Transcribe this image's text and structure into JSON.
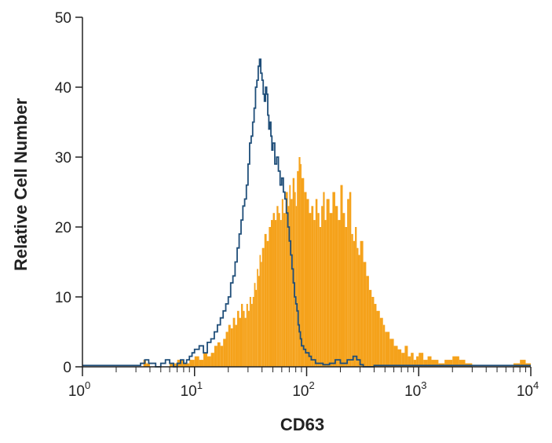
{
  "chart_data": {
    "type": "histogram-overlay",
    "title": "",
    "xlabel": "CD63",
    "ylabel": "Relative Cell Number",
    "xscale": "log",
    "xlim": [
      1,
      10000
    ],
    "ylim": [
      0,
      50
    ],
    "y_ticks": [
      "0",
      "10",
      "20",
      "30",
      "40",
      "50"
    ],
    "x_ticks": [
      {
        "base": "10",
        "exp": "0",
        "value": 1
      },
      {
        "base": "10",
        "exp": "1",
        "value": 10
      },
      {
        "base": "10",
        "exp": "2",
        "value": 100
      },
      {
        "base": "10",
        "exp": "3",
        "value": 1000
      },
      {
        "base": "10",
        "exp": "4",
        "value": 10000
      }
    ],
    "grid": false,
    "series": [
      {
        "style": "filled",
        "color": "#f5a21b",
        "points": [
          [
            3.3,
            0
          ],
          [
            3.5,
            1
          ],
          [
            3.7,
            0.5
          ],
          [
            4,
            0
          ],
          [
            5,
            0
          ],
          [
            6,
            0.5
          ],
          [
            7,
            1
          ],
          [
            8,
            0.5
          ],
          [
            9,
            1
          ],
          [
            10,
            1.5
          ],
          [
            11,
            1
          ],
          [
            12,
            2
          ],
          [
            13,
            1.5
          ],
          [
            14,
            2
          ],
          [
            15,
            3
          ],
          [
            16,
            3.5
          ],
          [
            17,
            3
          ],
          [
            18,
            4
          ],
          [
            19,
            5
          ],
          [
            20,
            6
          ],
          [
            21,
            5.5
          ],
          [
            22,
            7
          ],
          [
            23,
            6
          ],
          [
            24,
            8
          ],
          [
            25,
            7
          ],
          [
            26,
            9
          ],
          [
            27,
            8
          ],
          [
            28,
            7
          ],
          [
            29,
            9
          ],
          [
            30,
            8
          ],
          [
            31,
            10
          ],
          [
            32,
            9
          ],
          [
            33,
            10
          ],
          [
            34,
            12
          ],
          [
            35,
            11
          ],
          [
            36,
            14
          ],
          [
            37,
            13
          ],
          [
            38,
            16
          ],
          [
            39,
            15
          ],
          [
            40,
            17
          ],
          [
            42,
            19
          ],
          [
            44,
            18
          ],
          [
            46,
            20
          ],
          [
            48,
            21
          ],
          [
            50,
            22
          ],
          [
            52,
            21
          ],
          [
            54,
            23
          ],
          [
            56,
            22
          ],
          [
            58,
            21
          ],
          [
            60,
            24
          ],
          [
            62,
            22
          ],
          [
            65,
            25
          ],
          [
            68,
            23
          ],
          [
            70,
            26
          ],
          [
            72,
            24
          ],
          [
            75,
            27
          ],
          [
            78,
            25
          ],
          [
            80,
            23
          ],
          [
            82,
            28
          ],
          [
            85,
            30
          ],
          [
            88,
            29
          ],
          [
            90,
            27
          ],
          [
            95,
            25
          ],
          [
            100,
            24
          ],
          [
            105,
            22
          ],
          [
            110,
            23
          ],
          [
            115,
            21
          ],
          [
            120,
            24
          ],
          [
            125,
            22
          ],
          [
            130,
            20
          ],
          [
            135,
            23
          ],
          [
            140,
            25
          ],
          [
            145,
            21
          ],
          [
            150,
            24
          ],
          [
            160,
            22
          ],
          [
            170,
            25
          ],
          [
            180,
            23
          ],
          [
            190,
            21
          ],
          [
            200,
            26
          ],
          [
            210,
            22
          ],
          [
            220,
            20
          ],
          [
            230,
            24
          ],
          [
            240,
            25
          ],
          [
            250,
            19
          ],
          [
            260,
            18
          ],
          [
            270,
            20
          ],
          [
            280,
            17
          ],
          [
            290,
            16
          ],
          [
            300,
            18
          ],
          [
            320,
            15
          ],
          [
            340,
            13
          ],
          [
            360,
            11
          ],
          [
            380,
            10
          ],
          [
            400,
            9
          ],
          [
            420,
            8
          ],
          [
            450,
            7
          ],
          [
            480,
            6
          ],
          [
            500,
            5
          ],
          [
            550,
            4
          ],
          [
            600,
            3
          ],
          [
            650,
            2.5
          ],
          [
            700,
            2
          ],
          [
            750,
            3
          ],
          [
            800,
            1.5
          ],
          [
            850,
            2
          ],
          [
            900,
            1
          ],
          [
            950,
            1.5
          ],
          [
            1000,
            2
          ],
          [
            1100,
            1
          ],
          [
            1200,
            1.5
          ],
          [
            1300,
            1
          ],
          [
            1500,
            0.5
          ],
          [
            1700,
            1
          ],
          [
            2000,
            1.5
          ],
          [
            2300,
            1
          ],
          [
            2600,
            0.5
          ],
          [
            3000,
            0
          ],
          [
            4000,
            0
          ],
          [
            5000,
            0
          ],
          [
            6000,
            0
          ],
          [
            7000,
            0.5
          ],
          [
            8000,
            1
          ],
          [
            9000,
            0.5
          ],
          [
            10000,
            0
          ]
        ]
      },
      {
        "style": "outline",
        "color": "#1f4e79",
        "points": [
          [
            1,
            0.2
          ],
          [
            3,
            0.2
          ],
          [
            3.3,
            0.5
          ],
          [
            3.6,
            1
          ],
          [
            3.9,
            0.5
          ],
          [
            4.5,
            0
          ],
          [
            5,
            0.5
          ],
          [
            5.5,
            1
          ],
          [
            6,
            0.5
          ],
          [
            6.5,
            0
          ],
          [
            7,
            0.5
          ],
          [
            7.5,
            1
          ],
          [
            8,
            0.5
          ],
          [
            8.5,
            1
          ],
          [
            9,
            1.5
          ],
          [
            9.5,
            2
          ],
          [
            10,
            2.5
          ],
          [
            11,
            3
          ],
          [
            12,
            2
          ],
          [
            13,
            3.5
          ],
          [
            14,
            4
          ],
          [
            15,
            5
          ],
          [
            16,
            6
          ],
          [
            17,
            7
          ],
          [
            18,
            8
          ],
          [
            19,
            9
          ],
          [
            20,
            10
          ],
          [
            21,
            12
          ],
          [
            22,
            13
          ],
          [
            23,
            15
          ],
          [
            24,
            17
          ],
          [
            25,
            19
          ],
          [
            26,
            21
          ],
          [
            27,
            23
          ],
          [
            28,
            24
          ],
          [
            29,
            26
          ],
          [
            30,
            29
          ],
          [
            31,
            32
          ],
          [
            32,
            33
          ],
          [
            33,
            35
          ],
          [
            34,
            37
          ],
          [
            35,
            40
          ],
          [
            36,
            41
          ],
          [
            37,
            43
          ],
          [
            38,
            44
          ],
          [
            39,
            42
          ],
          [
            40,
            41
          ],
          [
            41,
            39
          ],
          [
            42,
            38
          ],
          [
            43,
            40
          ],
          [
            44,
            39
          ],
          [
            45,
            36
          ],
          [
            46,
            34
          ],
          [
            47,
            35
          ],
          [
            48,
            33
          ],
          [
            49,
            31
          ],
          [
            50,
            32
          ],
          [
            52,
            29
          ],
          [
            54,
            30
          ],
          [
            56,
            28
          ],
          [
            58,
            26
          ],
          [
            60,
            27
          ],
          [
            62,
            25
          ],
          [
            64,
            24
          ],
          [
            66,
            22
          ],
          [
            68,
            20
          ],
          [
            70,
            18
          ],
          [
            72,
            16
          ],
          [
            74,
            14
          ],
          [
            76,
            12
          ],
          [
            78,
            10
          ],
          [
            80,
            9
          ],
          [
            82,
            8
          ],
          [
            84,
            6
          ],
          [
            86,
            5
          ],
          [
            88,
            4
          ],
          [
            90,
            3
          ],
          [
            94,
            2.5
          ],
          [
            98,
            2
          ],
          [
            105,
            1.5
          ],
          [
            110,
            1
          ],
          [
            120,
            0.5
          ],
          [
            140,
            0.3
          ],
          [
            160,
            0.5
          ],
          [
            180,
            1
          ],
          [
            200,
            0.5
          ],
          [
            230,
            1
          ],
          [
            260,
            1.5
          ],
          [
            280,
            1
          ],
          [
            300,
            0.3
          ],
          [
            320,
            0
          ],
          [
            400,
            0.2
          ],
          [
            10000,
            0.2
          ]
        ]
      }
    ]
  }
}
